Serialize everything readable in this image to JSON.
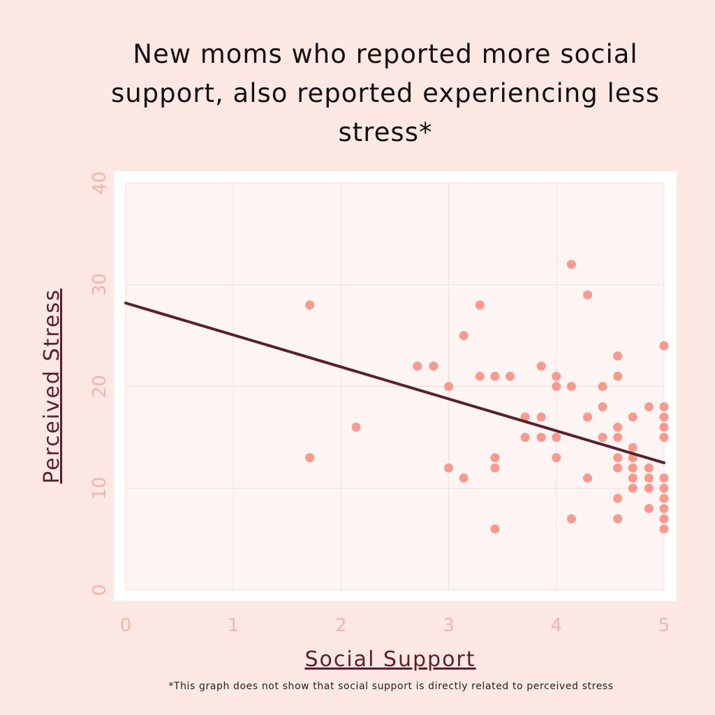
{
  "chart_data": {
    "type": "scatter",
    "title": "New moms who reported more social support, also reported experiencing less stress*",
    "xlabel": "Social Support",
    "ylabel": "Perceived Stress",
    "xlim": [
      0,
      5
    ],
    "ylim": [
      0,
      40
    ],
    "x_ticks": [
      0,
      1,
      2,
      3,
      4,
      5
    ],
    "y_ticks": [
      0,
      10,
      20,
      30,
      40
    ],
    "grid": true,
    "legend": "none",
    "points": [
      {
        "x": 1.71,
        "y": 28
      },
      {
        "x": 1.71,
        "y": 13
      },
      {
        "x": 2.14,
        "y": 16
      },
      {
        "x": 2.71,
        "y": 22
      },
      {
        "x": 2.86,
        "y": 22
      },
      {
        "x": 3.0,
        "y": 20
      },
      {
        "x": 3.0,
        "y": 12
      },
      {
        "x": 3.14,
        "y": 25
      },
      {
        "x": 3.14,
        "y": 11
      },
      {
        "x": 3.29,
        "y": 28
      },
      {
        "x": 3.29,
        "y": 21
      },
      {
        "x": 3.43,
        "y": 21
      },
      {
        "x": 3.43,
        "y": 13
      },
      {
        "x": 3.43,
        "y": 12
      },
      {
        "x": 3.43,
        "y": 6
      },
      {
        "x": 3.57,
        "y": 21
      },
      {
        "x": 3.71,
        "y": 17
      },
      {
        "x": 3.71,
        "y": 15
      },
      {
        "x": 3.86,
        "y": 22
      },
      {
        "x": 3.86,
        "y": 17
      },
      {
        "x": 3.86,
        "y": 15
      },
      {
        "x": 4.0,
        "y": 21
      },
      {
        "x": 4.0,
        "y": 20
      },
      {
        "x": 4.0,
        "y": 15
      },
      {
        "x": 4.0,
        "y": 13
      },
      {
        "x": 4.14,
        "y": 32
      },
      {
        "x": 4.14,
        "y": 20
      },
      {
        "x": 4.14,
        "y": 7
      },
      {
        "x": 4.29,
        "y": 29
      },
      {
        "x": 4.29,
        "y": 17
      },
      {
        "x": 4.29,
        "y": 11
      },
      {
        "x": 4.43,
        "y": 20
      },
      {
        "x": 4.43,
        "y": 18
      },
      {
        "x": 4.43,
        "y": 15
      },
      {
        "x": 4.57,
        "y": 23
      },
      {
        "x": 4.57,
        "y": 21
      },
      {
        "x": 4.57,
        "y": 16
      },
      {
        "x": 4.57,
        "y": 15
      },
      {
        "x": 4.57,
        "y": 13
      },
      {
        "x": 4.57,
        "y": 12
      },
      {
        "x": 4.57,
        "y": 9
      },
      {
        "x": 4.57,
        "y": 7
      },
      {
        "x": 4.71,
        "y": 17
      },
      {
        "x": 4.71,
        "y": 14
      },
      {
        "x": 4.71,
        "y": 13
      },
      {
        "x": 4.71,
        "y": 12
      },
      {
        "x": 4.71,
        "y": 11
      },
      {
        "x": 4.71,
        "y": 10
      },
      {
        "x": 4.86,
        "y": 18
      },
      {
        "x": 4.86,
        "y": 12
      },
      {
        "x": 4.86,
        "y": 11
      },
      {
        "x": 4.86,
        "y": 10
      },
      {
        "x": 4.86,
        "y": 8
      },
      {
        "x": 5.0,
        "y": 24
      },
      {
        "x": 5.0,
        "y": 18
      },
      {
        "x": 5.0,
        "y": 17
      },
      {
        "x": 5.0,
        "y": 16
      },
      {
        "x": 5.0,
        "y": 15
      },
      {
        "x": 5.0,
        "y": 11
      },
      {
        "x": 5.0,
        "y": 10
      },
      {
        "x": 5.0,
        "y": 9
      },
      {
        "x": 5.0,
        "y": 8
      },
      {
        "x": 5.0,
        "y": 7
      },
      {
        "x": 5.0,
        "y": 6
      }
    ],
    "trend_line": {
      "x": [
        0,
        5
      ],
      "y": [
        28.2,
        12.5
      ]
    },
    "footnote": "*This graph does not show that social support is directly related to perceived stress"
  },
  "colors": {
    "background": "#fde8e4",
    "panel": "#ffffff",
    "plot": "#fdf5f3",
    "grid": "#f6dcd7",
    "point": "#fa9a8e",
    "trend": "#5a1f2e",
    "tick": "#f6b4a8",
    "axis_label": "#5a1f2e"
  }
}
